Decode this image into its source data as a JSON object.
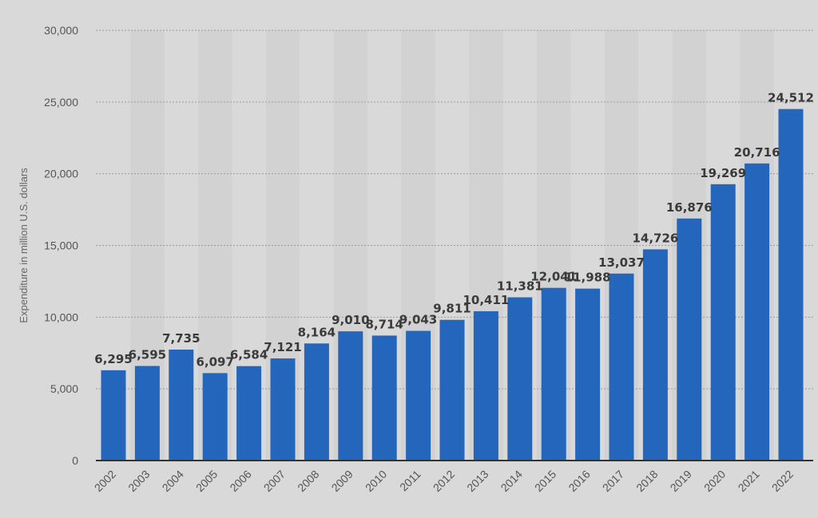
{
  "colors": {
    "background": "#d9d9d9",
    "band": "#d2d2d2",
    "bar": "#2466bb",
    "grid": "#9a9a9a",
    "axis": "#333333"
  },
  "chart_data": {
    "type": "bar",
    "title": "",
    "xlabel": "",
    "ylabel": "Expenditure in million U.S. dollars",
    "categories": [
      "2002",
      "2003",
      "2004",
      "2005",
      "2006",
      "2007",
      "2008",
      "2009",
      "2010",
      "2011",
      "2012",
      "2013",
      "2014",
      "2015",
      "2016",
      "2017",
      "2018",
      "2019",
      "2020",
      "2021",
      "2022"
    ],
    "values": [
      6295,
      6595,
      7735,
      6097,
      6584,
      7121,
      8164,
      9010,
      8714,
      9043,
      9811,
      10411,
      11381,
      12041,
      11988,
      13037,
      14726,
      16876,
      19269,
      20716,
      24512
    ],
    "value_labels": [
      "6,295",
      "6,595",
      "7,735",
      "6,097",
      "6,584",
      "7,121",
      "8,164",
      "9,010",
      "8,714",
      "9,043",
      "9,811",
      "10,411",
      "11,381",
      "12,041",
      "11,988",
      "13,037",
      "14,726",
      "16,876",
      "19,269",
      "20,716",
      "24,512"
    ],
    "ylim": [
      0,
      30000
    ],
    "yticks": [
      0,
      5000,
      10000,
      15000,
      20000,
      25000,
      30000
    ],
    "ytick_labels": [
      "0",
      "5,000",
      "10,000",
      "15,000",
      "20,000",
      "25,000",
      "30,000"
    ],
    "grid": true,
    "legend": "none"
  }
}
